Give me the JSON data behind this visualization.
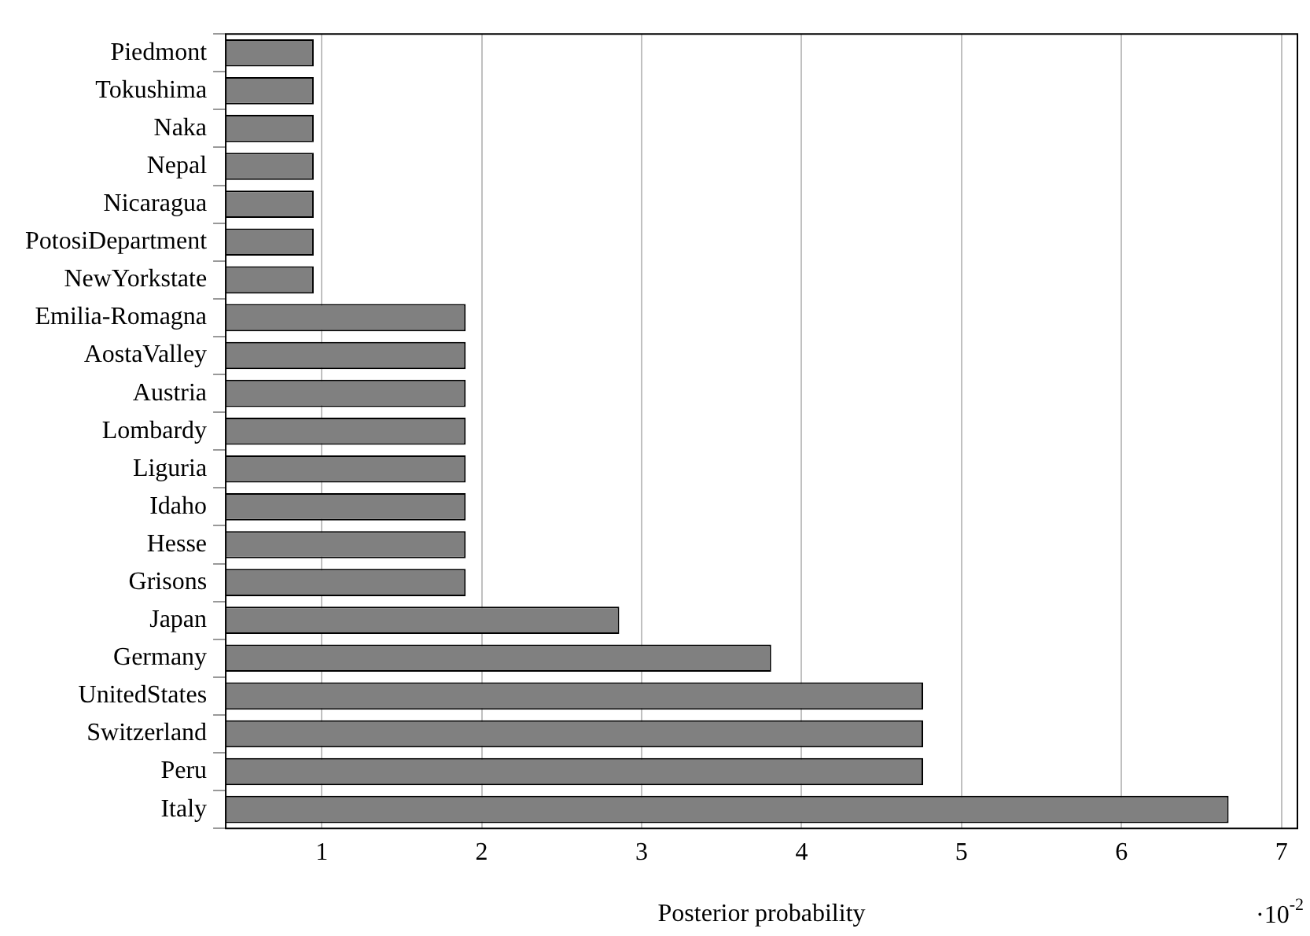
{
  "chart_data": {
    "type": "bar",
    "orientation": "horizontal",
    "xlabel": "Posterior probability",
    "categories": [
      "Piedmont",
      "Tokushima",
      "Naka",
      "Nepal",
      "Nicaragua",
      "PotosiDepartment",
      "NewYorkstate",
      "Emilia-Romagna",
      "AostaValley",
      "Austria",
      "Lombardy",
      "Liguria",
      "Idaho",
      "Hesse",
      "Grisons",
      "Japan",
      "Germany",
      "UnitedStates",
      "Switzerland",
      "Peru",
      "Italy"
    ],
    "values": [
      0.95,
      0.95,
      0.95,
      0.95,
      0.95,
      0.95,
      0.95,
      1.9,
      1.9,
      1.9,
      1.9,
      1.9,
      1.9,
      1.9,
      1.9,
      2.86,
      3.81,
      4.76,
      4.76,
      4.76,
      6.67
    ],
    "color": "#808080",
    "xlim": [
      0.4,
      7.1
    ],
    "xticks": [
      1,
      2,
      3,
      4,
      5,
      6,
      7
    ],
    "grid": "x",
    "legend": false,
    "annotations": [
      "·10$^{-2}$"
    ]
  }
}
